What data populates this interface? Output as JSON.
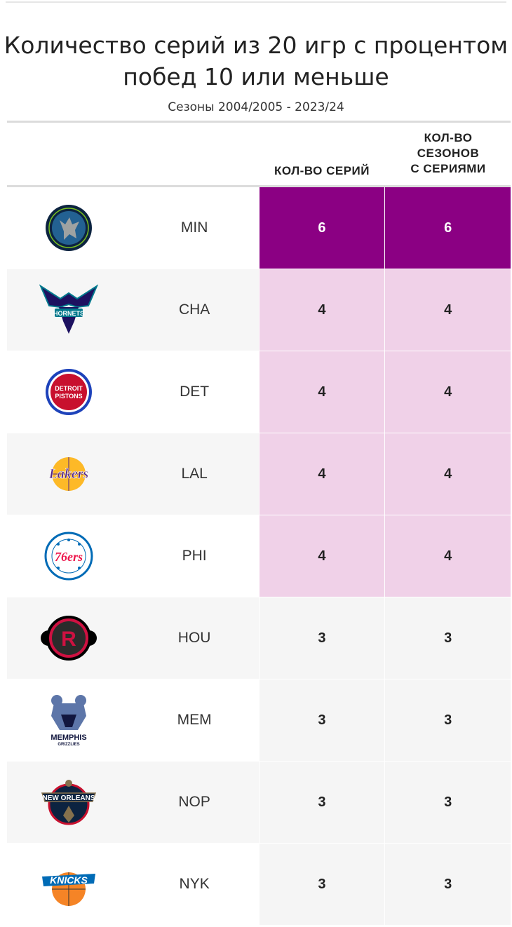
{
  "title_line1": "Количество серий из 20 игр с процентом",
  "title_line2": "побед 10 или меньше",
  "subtitle": "Сезоны 2004/2005 - 2023/24",
  "columns": {
    "series": "КОЛ-ВО СЕРИЙ",
    "seasons_l1": "КОЛ-ВО",
    "seasons_l2": "СЕЗОНОВ",
    "seasons_l3": "С СЕРИЯМИ"
  },
  "colors": {
    "dark": "#8b0083",
    "light": "#f0d1e8",
    "neutral": "#f5f5f5",
    "row_left": "#f6f6f6"
  },
  "rows": [
    {
      "team": "MIN",
      "logo_icon": "timberwolves-logo-icon",
      "series": "6",
      "seasons": "6",
      "tier": "dark"
    },
    {
      "team": "CHA",
      "logo_icon": "hornets-logo-icon",
      "series": "4",
      "seasons": "4",
      "tier": "light"
    },
    {
      "team": "DET",
      "logo_icon": "pistons-logo-icon",
      "series": "4",
      "seasons": "4",
      "tier": "light"
    },
    {
      "team": "LAL",
      "logo_icon": "lakers-logo-icon",
      "series": "4",
      "seasons": "4",
      "tier": "light"
    },
    {
      "team": "PHI",
      "logo_icon": "76ers-logo-icon",
      "series": "4",
      "seasons": "4",
      "tier": "light"
    },
    {
      "team": "HOU",
      "logo_icon": "rockets-logo-icon",
      "series": "3",
      "seasons": "3",
      "tier": "neutral"
    },
    {
      "team": "MEM",
      "logo_icon": "grizzlies-logo-icon",
      "series": "3",
      "seasons": "3",
      "tier": "neutral"
    },
    {
      "team": "NOP",
      "logo_icon": "pelicans-logo-icon",
      "series": "3",
      "seasons": "3",
      "tier": "neutral"
    },
    {
      "team": "NYK",
      "logo_icon": "knicks-logo-icon",
      "series": "3",
      "seasons": "3",
      "tier": "neutral"
    }
  ],
  "logo_text": {
    "hornets": "HORNETS",
    "detroit": "DETROIT",
    "pistons": "PISTONS",
    "lakers": "Lakers",
    "sixers": "76ers",
    "rockets": "R",
    "memphis": "MEMPHIS",
    "grizzlies": "GRIZZLIES",
    "new_orleans": "NEW ORLEANS",
    "knicks": "KNICKS"
  }
}
